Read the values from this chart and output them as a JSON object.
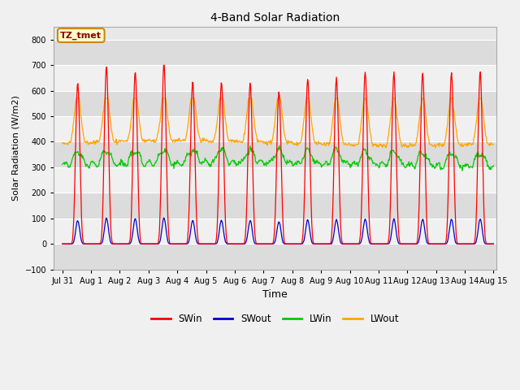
{
  "title": "4-Band Solar Radiation",
  "ylabel": "Solar Radiation (W/m2)",
  "xlabel": "Time",
  "ylim": [
    -100,
    850
  ],
  "yticks": [
    -100,
    0,
    100,
    200,
    300,
    400,
    500,
    600,
    700,
    800
  ],
  "annotation_text": "TZ_tmet",
  "annotation_color": "#8B0000",
  "annotation_bg": "#FFFFCC",
  "annotation_border": "#CC8800",
  "colors": {
    "SWin": "#FF0000",
    "SWout": "#0000CC",
    "LWin": "#00CC00",
    "LWout": "#FFA500"
  },
  "n_days": 15,
  "plot_bg": "#E8E8E8",
  "fig_bg": "#F0F0F0",
  "band_colors": [
    "#DCDCDC",
    "#F0F0F0"
  ],
  "grid_color": "#FFFFFF"
}
